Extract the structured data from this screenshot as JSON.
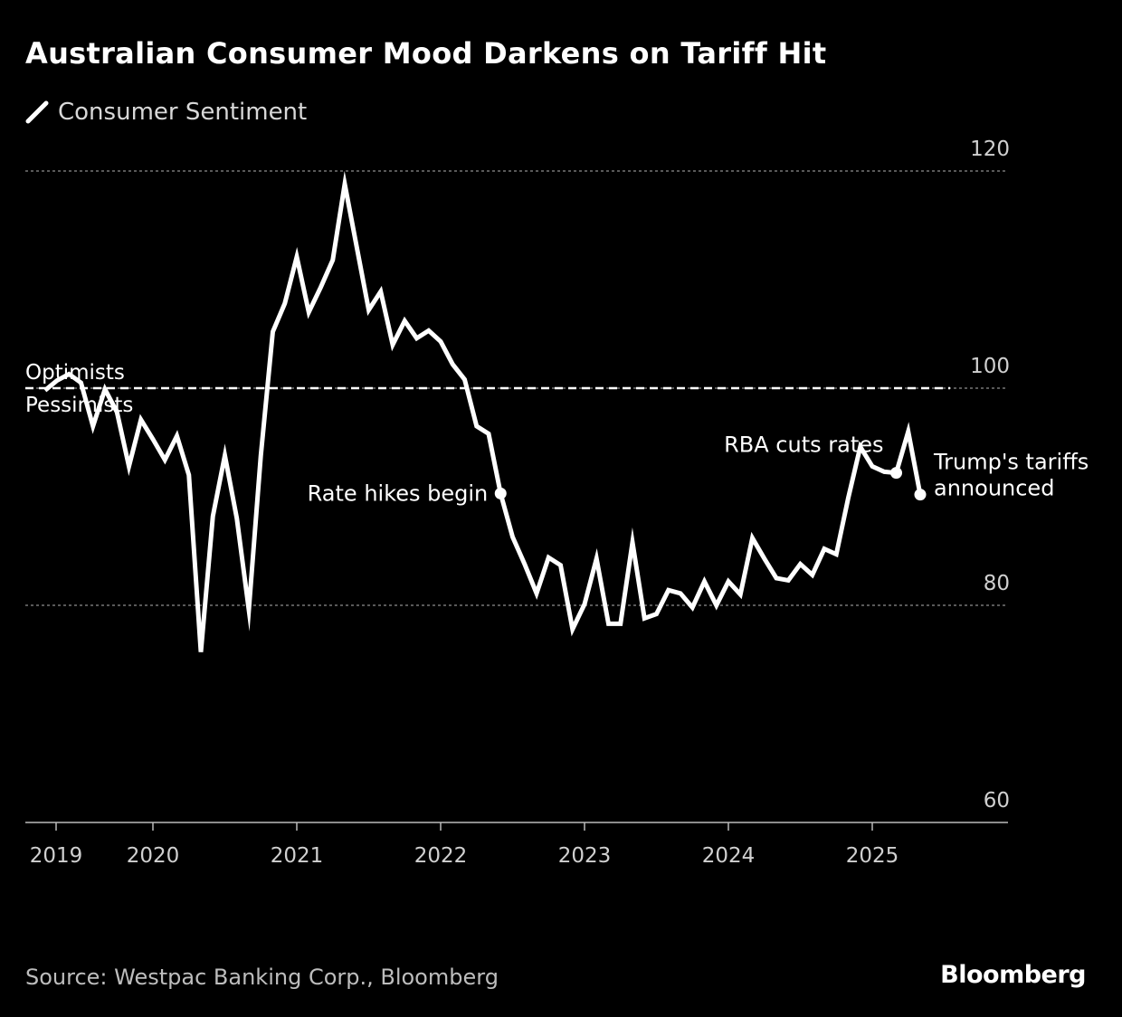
{
  "title": "Australian Consumer Mood Darkens on Tariff Hit",
  "legend": {
    "label": "Consumer Sentiment",
    "icon": "line-swatch-icon"
  },
  "source": "Source: Westpac Banking Corp., Bloomberg",
  "logo": "Bloomberg",
  "chart_data": {
    "type": "line",
    "title": "Australian Consumer Mood Darkens on Tariff Hit",
    "xlabel": "",
    "ylabel": "",
    "ylim": [
      60,
      120
    ],
    "yticks": [
      "60",
      "80",
      "100",
      "120"
    ],
    "ytick_values": [
      60,
      80,
      100,
      120
    ],
    "xticks": [
      "2019",
      "2020",
      "2021",
      "2022",
      "2023",
      "2024",
      "2025"
    ],
    "grid": true,
    "legend_position": "top-left",
    "series": [
      {
        "name": "Consumer Sentiment",
        "start": "2019-03",
        "frequency": "monthly",
        "color": "#ffffff",
        "values": [
          99.8,
          100.7,
          101.3,
          100.5,
          96.5,
          99.9,
          97.8,
          92.8,
          97.1,
          95.3,
          93.4,
          95.6,
          92.0,
          75.7,
          88.2,
          93.8,
          88.0,
          79.6,
          93.8,
          105.2,
          107.8,
          112.1,
          107.0,
          109.3,
          111.8,
          118.8,
          113.0,
          107.2,
          108.9,
          104.0,
          106.2,
          104.6,
          105.3,
          104.3,
          102.2,
          100.8,
          96.5,
          95.8,
          90.3,
          86.3,
          83.8,
          81.1,
          84.4,
          83.7,
          77.8,
          80.1,
          84.3,
          78.3,
          78.3,
          85.8,
          78.8,
          79.2,
          81.4,
          81.1,
          79.8,
          82.2,
          80.0,
          82.2,
          81.0,
          86.2,
          84.3,
          82.5,
          82.3,
          83.8,
          82.8,
          85.2,
          84.7,
          89.9,
          94.6,
          92.8,
          92.3,
          92.2,
          96.0,
          90.2
        ]
      }
    ],
    "reference_line": {
      "value": 100,
      "label_above": "Optimists",
      "label_below": "Pessimists"
    },
    "annotations": [
      {
        "date": "2022-05",
        "value": 90.3,
        "lines": [
          "Rate hikes begin"
        ],
        "side": "left"
      },
      {
        "date": "2025-02",
        "value": 92.2,
        "lines": [
          "RBA cuts rates"
        ],
        "side": "above-left"
      },
      {
        "date": "2025-04",
        "value": 90.2,
        "lines": [
          "Trump's tariffs",
          "announced"
        ],
        "side": "right"
      }
    ]
  }
}
